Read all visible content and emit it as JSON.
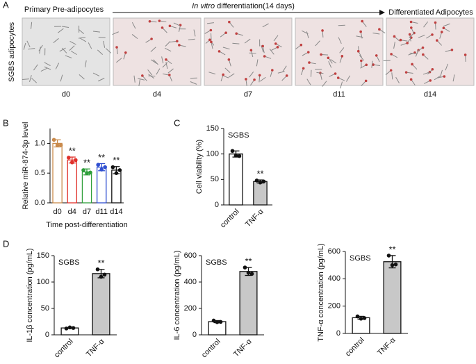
{
  "panel_labels": [
    "A",
    "B",
    "C",
    "D"
  ],
  "panel_a": {
    "left_label": "Primary Pre-adipocytes",
    "arrow_label_italic": "In vitro",
    "arrow_label": " differentiation(14 days)",
    "right_label": "Differentiated Adipocytes",
    "row_label": "SGBS adipocytes",
    "images": [
      "d0",
      "d4",
      "d7",
      "d11",
      "d14"
    ]
  },
  "chart_data": [
    {
      "type": "bar",
      "ylabel": "Relative miR-874-3p level",
      "xlabel": "Time post-differentiation",
      "categories": [
        "d0",
        "d4",
        "d7",
        "d11",
        "d14"
      ],
      "values": [
        1.0,
        0.72,
        0.52,
        0.6,
        0.55
      ],
      "errors": [
        0.06,
        0.05,
        0.05,
        0.06,
        0.06
      ],
      "points": [
        [
          1.06,
          0.97,
          0.97
        ],
        [
          0.76,
          0.68,
          0.72
        ],
        [
          0.55,
          0.5,
          0.51
        ],
        [
          0.64,
          0.56,
          0.6
        ],
        [
          0.6,
          0.5,
          0.55
        ]
      ],
      "colors": [
        "#c98a4b",
        "#e0302a",
        "#2e9e3a",
        "#2f4fd0",
        "#111111"
      ],
      "fills": [
        "#ffffff",
        "#ffffff",
        "#ffffff",
        "#ffffff",
        "#ffffff"
      ],
      "sig_labels": [
        null,
        "**",
        "**",
        "**",
        "**"
      ],
      "ylim": [
        0,
        1.25
      ],
      "yticks": [
        {
          "value": 0,
          "label": "0.0"
        },
        {
          "value": 0.5,
          "label": "0.5"
        },
        {
          "value": 1,
          "label": "1.0"
        }
      ]
    },
    {
      "type": "bar",
      "ylabel": "Cell viability (%)",
      "inset_label": "SGBS",
      "categories": [
        "control",
        "TNF-α"
      ],
      "values": [
        100,
        46
      ],
      "errors": [
        6,
        3
      ],
      "points": [
        [
          106,
          97,
          96
        ],
        [
          48,
          44,
          46
        ]
      ],
      "colors": [
        "#111111",
        "#111111"
      ],
      "fills": [
        "#ffffff",
        "#c8c8c8"
      ],
      "sig_labels": [
        null,
        "**"
      ],
      "ylim": [
        0,
        150
      ],
      "yticks": [
        0,
        50,
        100,
        150
      ]
    },
    {
      "type": "bar",
      "ylabel": "IL-1β concentration (pg/mL)",
      "inset_label": "SGBS",
      "categories": [
        "control",
        "TNF-α"
      ],
      "values": [
        13,
        116
      ],
      "errors": [
        1,
        8
      ],
      "points": [
        [
          12,
          14,
          13
        ],
        [
          124,
          110,
          114
        ]
      ],
      "colors": [
        "#111111",
        "#111111"
      ],
      "fills": [
        "#ffffff",
        "#c8c8c8"
      ],
      "sig_labels": [
        null,
        "**"
      ],
      "ylim": [
        0,
        150
      ],
      "yticks": [
        0,
        50,
        100,
        150
      ]
    },
    {
      "type": "bar",
      "ylabel": "IL-6 concentration (pg/mL)",
      "inset_label": "SGBS",
      "categories": [
        "control",
        "TNF-α"
      ],
      "values": [
        100,
        480
      ],
      "errors": [
        8,
        30
      ],
      "points": [
        [
          108,
          96,
          98
        ],
        [
          510,
          470,
          462
        ]
      ],
      "colors": [
        "#111111",
        "#111111"
      ],
      "fills": [
        "#ffffff",
        "#c8c8c8"
      ],
      "sig_labels": [
        null,
        "**"
      ],
      "ylim": [
        0,
        600
      ],
      "yticks": [
        0,
        200,
        400,
        600
      ]
    },
    {
      "type": "bar",
      "ylabel": "TNF-α concentration (pg/mL)",
      "inset_label": "SGBS",
      "categories": [
        "control",
        "TNF-α"
      ],
      "values": [
        115,
        525
      ],
      "errors": [
        10,
        45
      ],
      "points": [
        [
          125,
          108,
          112
        ],
        [
          570,
          500,
          505
        ]
      ],
      "colors": [
        "#111111",
        "#111111"
      ],
      "fills": [
        "#ffffff",
        "#c8c8c8"
      ],
      "sig_labels": [
        null,
        "**"
      ],
      "ylim": [
        0,
        600
      ],
      "yticks": [
        0,
        200,
        400,
        600
      ]
    }
  ]
}
